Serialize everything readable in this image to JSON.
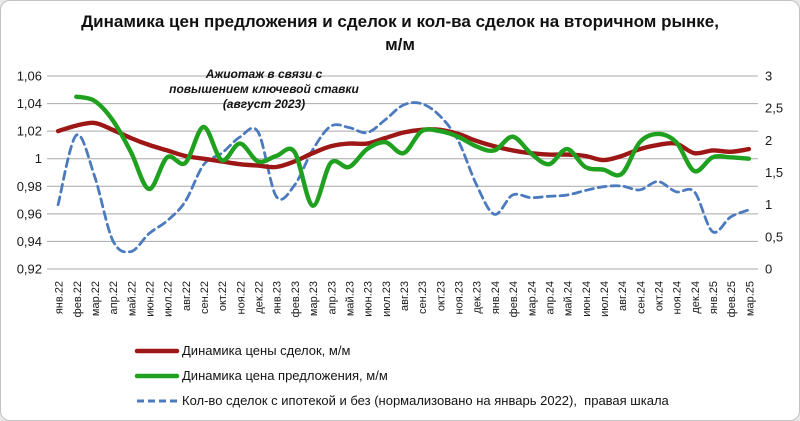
{
  "title": {
    "line1": "Динамика цен предложения и сделок и кол-ва сделок на вторичном рынке,",
    "line2": "м/м"
  },
  "annotation": {
    "lines": [
      "Ажиотаж в связи с",
      "повышением ключевой ставки",
      "(август 2023)"
    ]
  },
  "legend": [
    {
      "label": "Динамика цены сделок, м/м",
      "color": "#9e1717",
      "style": "solid"
    },
    {
      "label": "Динамика цена предложения, м/м",
      "color": "#1fa11f",
      "style": "solid"
    },
    {
      "label": "Кол-во сделок с ипотекой и без (нормализовано на январь 2022),  правая шкала",
      "color": "#4b7bbe",
      "style": "dashed"
    }
  ],
  "chart_data": {
    "type": "line",
    "smoothed": true,
    "grid": "horizontal",
    "legend_position": "bottom-left",
    "title": "Динамика цен предложения и сделок и кол-ва сделок на вторичном рынке, м/м",
    "categories": [
      "янв.22",
      "фев.22",
      "мар.22",
      "апр.22",
      "май.22",
      "июн.22",
      "июл.22",
      "авг.22",
      "сен.22",
      "окт.22",
      "ноя.22",
      "дек.22",
      "янв.23",
      "фев.23",
      "мар.23",
      "апр.23",
      "май.23",
      "июн.23",
      "июл.23",
      "авг.23",
      "сен.23",
      "окт.23",
      "ноя.23",
      "дек.23",
      "янв.24",
      "фев.24",
      "мар.24",
      "апр.24",
      "май.24",
      "июн.24",
      "июл.24",
      "авг.24",
      "сен.24",
      "окт.24",
      "ноя.24",
      "дек.24",
      "янв.25",
      "фев.25",
      "мар.25"
    ],
    "left_axis": {
      "min": 0.92,
      "max": 1.06,
      "tick_labels": [
        "1,06",
        "1,04",
        "1,02",
        "1",
        "0,98",
        "0,96",
        "0,94",
        "0,92"
      ]
    },
    "right_axis": {
      "min": 0,
      "max": 3,
      "tick_labels": [
        "3",
        "2,5",
        "2",
        "1,5",
        "1",
        "0,5",
        "0"
      ]
    },
    "series": [
      {
        "name": "Динамика цены сделок, м/м",
        "axis": "left",
        "color": "#9e1717",
        "style": "solid",
        "values": [
          1.02,
          1.024,
          1.026,
          1.021,
          1.015,
          1.01,
          1.006,
          1.002,
          1.0,
          0.998,
          0.996,
          0.995,
          0.994,
          0.998,
          1.004,
          1.009,
          1.011,
          1.011,
          1.015,
          1.019,
          1.021,
          1.021,
          1.018,
          1.013,
          1.009,
          1.006,
          1.004,
          1.003,
          1.003,
          1.002,
          0.999,
          1.002,
          1.007,
          1.01,
          1.011,
          1.004,
          1.006,
          1.005,
          1.007
        ]
      },
      {
        "name": "Динамика цена предложения, м/м",
        "axis": "left",
        "color": "#1fa11f",
        "style": "solid",
        "values": [
          null,
          1.045,
          1.042,
          1.028,
          1.005,
          0.978,
          1.001,
          0.997,
          1.023,
          0.999,
          1.011,
          0.998,
          1.002,
          1.005,
          0.966,
          0.997,
          0.994,
          1.007,
          1.012,
          1.004,
          1.02,
          1.02,
          1.016,
          1.009,
          1.006,
          1.016,
          1.004,
          0.996,
          1.007,
          0.994,
          0.992,
          0.989,
          1.012,
          1.018,
          1.012,
          0.991,
          1.001,
          1.001,
          1.0
        ]
      },
      {
        "name": "Кол-во сделок с ипотекой и без (нормализовано на январь 2022), правая шкала",
        "axis": "right",
        "color": "#4b7bbe",
        "style": "dashed",
        "values": [
          1.0,
          2.08,
          1.45,
          0.45,
          0.27,
          0.55,
          0.75,
          1.05,
          1.62,
          1.8,
          2.05,
          2.13,
          1.13,
          1.3,
          1.85,
          2.22,
          2.2,
          2.12,
          2.32,
          2.55,
          2.57,
          2.38,
          2.0,
          1.32,
          0.85,
          1.15,
          1.11,
          1.13,
          1.15,
          1.22,
          1.28,
          1.29,
          1.23,
          1.36,
          1.2,
          1.2,
          0.58,
          0.81,
          0.92
        ]
      }
    ]
  }
}
